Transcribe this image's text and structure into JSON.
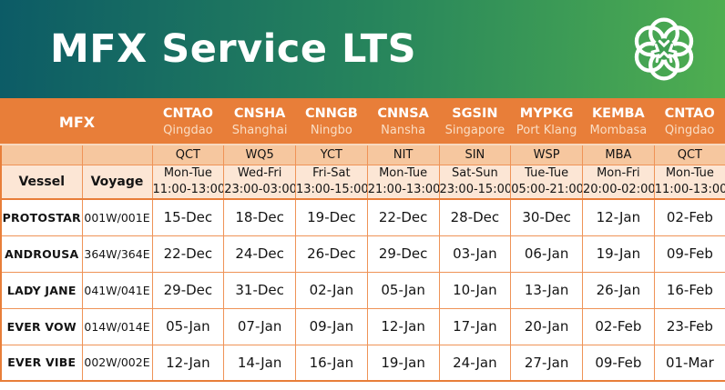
{
  "banner": {
    "title": "MFX Service LTS",
    "logo_icon": "flower-logo"
  },
  "colors": {
    "banner_gradient_start": "#0c5b66",
    "banner_gradient_end": "#4fae50",
    "header_orange": "#e87e39",
    "terminal_row_peach": "#f6c79f",
    "schedule_row_peach": "#fce6d5",
    "border_orange": "#ef9357",
    "text_dark": "#141414",
    "text_white": "#ffffff"
  },
  "table": {
    "service_label": "MFX",
    "vessel_header": "Vessel",
    "voyage_header": "Voyage",
    "ports": [
      {
        "code": "CNTAO",
        "city": "Qingdao",
        "terminal": "QCT",
        "days": "Mon-Tue",
        "hours": "11:00-13:00"
      },
      {
        "code": "CNSHA",
        "city": "Shanghai",
        "terminal": "WQ5",
        "days": "Wed-Fri",
        "hours": "23:00-03:00"
      },
      {
        "code": "CNNGB",
        "city": "Ningbo",
        "terminal": "YCT",
        "days": "Fri-Sat",
        "hours": "13:00-15:00"
      },
      {
        "code": "CNNSA",
        "city": "Nansha",
        "terminal": "NIT",
        "days": "Mon-Tue",
        "hours": "21:00-13:00"
      },
      {
        "code": "SGSIN",
        "city": "Singapore",
        "terminal": "SIN",
        "days": "Sat-Sun",
        "hours": "23:00-15:00"
      },
      {
        "code": "MYPKG",
        "city": "Port Klang",
        "terminal": "WSP",
        "days": "Tue-Tue",
        "hours": "05:00-21:00"
      },
      {
        "code": "KEMBA",
        "city": "Mombasa",
        "terminal": "MBA",
        "days": "Mon-Fri",
        "hours": "20:00-02:00"
      },
      {
        "code": "CNTAO",
        "city": "Qingdao",
        "terminal": "QCT",
        "days": "Mon-Tue",
        "hours": "11:00-13:00"
      }
    ],
    "rows": [
      {
        "vessel": "PROTOSTAR",
        "voyage": "001W/001E",
        "dates": [
          "15-Dec",
          "18-Dec",
          "19-Dec",
          "22-Dec",
          "28-Dec",
          "30-Dec",
          "12-Jan",
          "02-Feb"
        ]
      },
      {
        "vessel": "ANDROUSA",
        "voyage": "364W/364E",
        "dates": [
          "22-Dec",
          "24-Dec",
          "26-Dec",
          "29-Dec",
          "03-Jan",
          "06-Jan",
          "19-Jan",
          "09-Feb"
        ]
      },
      {
        "vessel": "LADY JANE",
        "voyage": "041W/041E",
        "dates": [
          "29-Dec",
          "31-Dec",
          "02-Jan",
          "05-Jan",
          "10-Jan",
          "13-Jan",
          "26-Jan",
          "16-Feb"
        ]
      },
      {
        "vessel": "EVER VOW",
        "voyage": "014W/014E",
        "dates": [
          "05-Jan",
          "07-Jan",
          "09-Jan",
          "12-Jan",
          "17-Jan",
          "20-Jan",
          "02-Feb",
          "23-Feb"
        ]
      },
      {
        "vessel": "EVER VIBE",
        "voyage": "002W/002E",
        "dates": [
          "12-Jan",
          "14-Jan",
          "16-Jan",
          "19-Jan",
          "24-Jan",
          "27-Jan",
          "09-Feb",
          "01-Mar"
        ]
      }
    ]
  }
}
